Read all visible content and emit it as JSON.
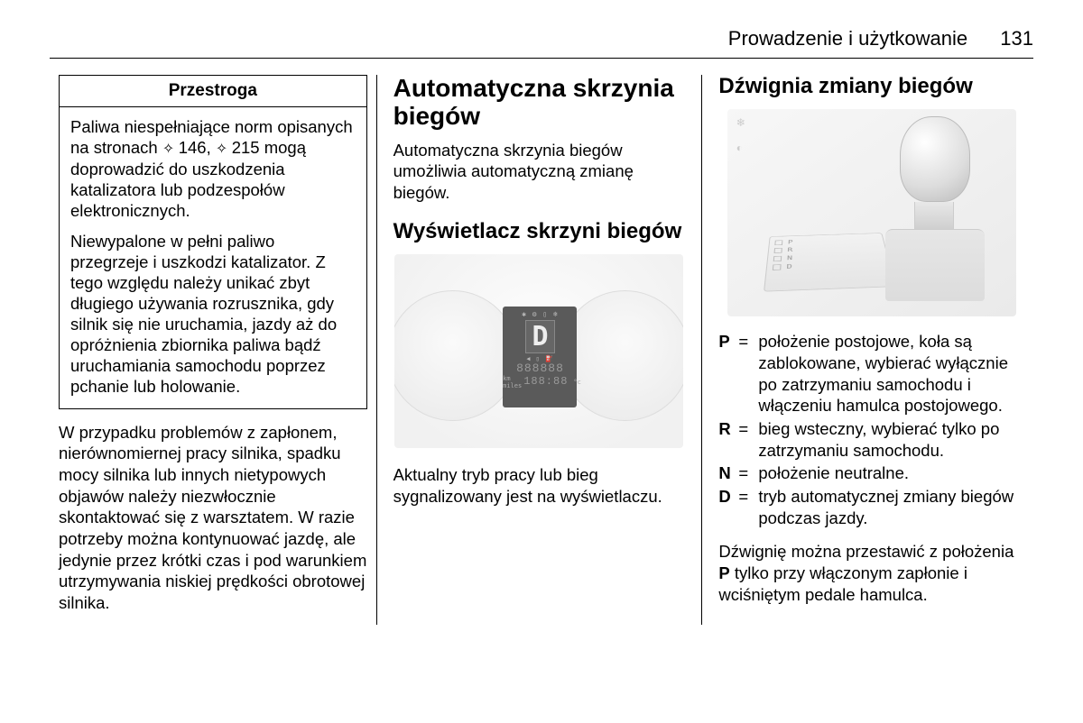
{
  "header": {
    "chapter": "Prowadzenie i użytkowanie",
    "page": "131"
  },
  "col1": {
    "caution_title": "Przestroga",
    "caution_p1a": "Paliwa niespełniające norm opisanych na stronach ",
    "caution_link1": "146",
    "caution_p1b": ", ",
    "caution_link2": "215",
    "caution_p1c": " mogą doprowadzić do uszkodzenia katalizatora lub podzespołów elektronicznych.",
    "caution_p2": "Niewypalone w pełni paliwo przegrzeje i uszkodzi katalizator. Z tego względu należy unikać zbyt długiego używania rozrusznika, gdy silnik się nie uruchamia, jazdy aż do opróżnienia zbiornika paliwa bądź uruchamiania samochodu poprzez pchanie lub holowanie.",
    "para": "W przypadku problemów z zapłonem, nierównomiernej pracy silnika, spadku mocy silnika lub innych nietypowych objawów należy niezwłocznie skontaktować się z warsztatem. W razie potrzeby można kontynuować jazdę, ale jedynie przez krótki czas i pod warunkiem utrzymywania niskiej prędkości obrotowej silnika."
  },
  "col2": {
    "h1": "Automatyczna skrzynia biegów",
    "intro": "Automatyczna skrzynia biegów umożliwia automatyczną zmianę biegów.",
    "h2": "Wyświetlacz skrzyni biegów",
    "lcd_gear": "D",
    "lcd_seg1": "888888",
    "lcd_seg2": "188:88",
    "caption": "Aktualny tryb pracy lub bieg sygnalizowany jest na wyświetlaczu."
  },
  "col3": {
    "h2": "Dźwignia zmiany biegów",
    "defs": [
      {
        "k": "P",
        "v": "położenie postojowe, koła są zablokowane, wybierać wyłącznie po zatrzymaniu samochodu i włączeniu hamulca postojowego."
      },
      {
        "k": "R",
        "v": "bieg wsteczny, wybierać tylko po zatrzymaniu samochodu."
      },
      {
        "k": "N",
        "v": "położenie neutralne."
      },
      {
        "k": "D",
        "v": "tryb automatycznej zmiany biegów podczas jazdy."
      }
    ],
    "note_a": "Dźwignię można przestawić z położenia ",
    "note_b": "P",
    "note_c": " tylko przy włączonym zapłonie i wciśniętym pedale hamulca."
  },
  "gear_plate": [
    "P",
    "R",
    "N",
    "D"
  ]
}
